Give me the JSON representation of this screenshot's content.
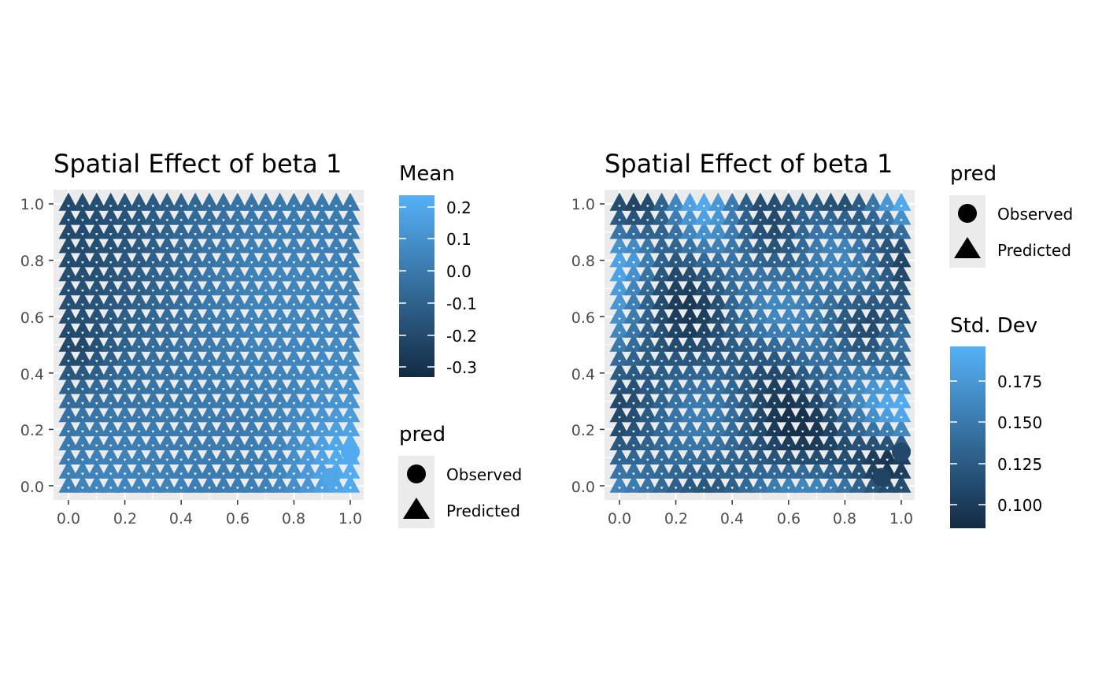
{
  "colors": {
    "low": "#132B43",
    "high": "#56B1F7",
    "panel_bg": "#EBEBEB",
    "grid": "#FFFFFF",
    "key_bg": "#EBEBEB"
  },
  "chart_data": [
    {
      "type": "scatter",
      "title": "Spatial Effect of beta 1",
      "xlabel": "",
      "ylabel": "",
      "xlim": [
        0,
        1
      ],
      "ylim": [
        0,
        1
      ],
      "x_ticks": [
        "0.0",
        "0.2",
        "0.4",
        "0.6",
        "0.8",
        "1.0"
      ],
      "y_ticks": [
        "0.0",
        "0.2",
        "0.4",
        "0.6",
        "0.8",
        "1.0"
      ],
      "grid": true,
      "legend_position": "right",
      "points": "predicted grid of triangles at x,y in 0..1 step 0.05, observed circles at (0.93,0.03) and (1.0,0.12)",
      "color_legend": {
        "title": "Mean",
        "labels": [
          "0.2",
          "0.1",
          "0.0",
          "-0.1",
          "-0.2",
          "-0.3"
        ],
        "range": [
          -0.33,
          0.24
        ]
      },
      "shape_legend": {
        "title": "pred",
        "items": [
          {
            "label": "Observed",
            "shape": "circle"
          },
          {
            "label": "Predicted",
            "shape": "triangle"
          }
        ]
      }
    },
    {
      "type": "scatter",
      "title": "Spatial Effect of beta 1",
      "xlabel": "",
      "ylabel": "",
      "xlim": [
        0,
        1
      ],
      "ylim": [
        0,
        1
      ],
      "x_ticks": [
        "0.0",
        "0.2",
        "0.4",
        "0.6",
        "0.8",
        "1.0"
      ],
      "y_ticks": [
        "0.0",
        "0.2",
        "0.4",
        "0.6",
        "0.8",
        "1.0"
      ],
      "grid": true,
      "legend_position": "right",
      "shape_legend": {
        "title": "pred",
        "items": [
          {
            "label": "Observed",
            "shape": "circle"
          },
          {
            "label": "Predicted",
            "shape": "triangle"
          }
        ]
      },
      "color_legend": {
        "title": "Std. Dev",
        "labels": [
          "0.175",
          "0.150",
          "0.125",
          "0.100"
        ],
        "range": [
          0.087,
          0.198
        ]
      }
    }
  ]
}
